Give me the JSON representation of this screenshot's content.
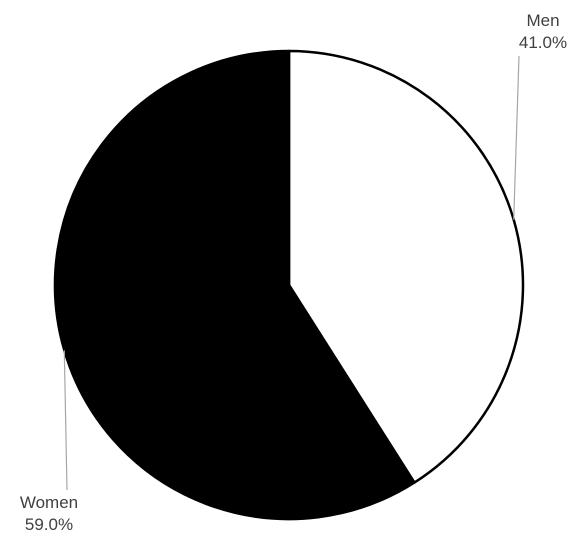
{
  "chart_data": {
    "type": "pie",
    "title": "",
    "slices": [
      {
        "name": "Men",
        "value": 41.0,
        "label": "41.0%",
        "color": "#ffffff"
      },
      {
        "name": "Women",
        "value": 59.0,
        "label": "59.0%",
        "color": "#000000"
      }
    ],
    "start_angle": "12 o'clock",
    "direction": "clockwise",
    "slice_border_color": "#000000",
    "leader_line_color": "#a6a6a6",
    "legend": "none",
    "labels_outside": true
  }
}
